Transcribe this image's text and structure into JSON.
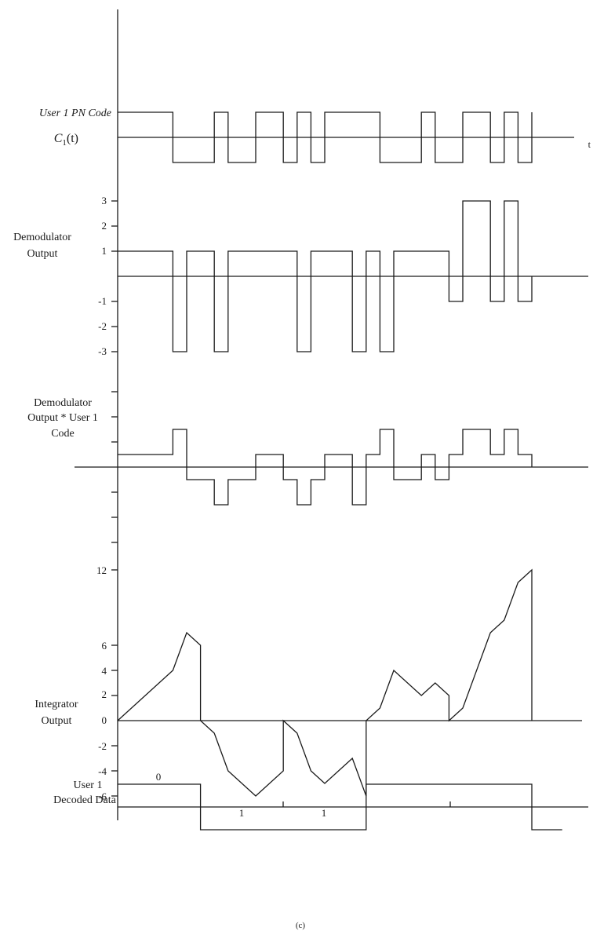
{
  "labels": {
    "pn_code_line1": "User 1 PN Code",
    "pn_code_line2": "C",
    "pn_code_sub": "1",
    "pn_code_arg": "(t)",
    "t_axis": "t",
    "demod_line1": "Demodulator",
    "demod_line2": "Output",
    "product_line1": "Demodulator",
    "product_line2": "Output * User 1",
    "product_line3": "Code",
    "integrator_line1": "Integrator",
    "integrator_line2": "Output",
    "decoded_line1": "User 1",
    "decoded_line2": "Decoded Data",
    "caption": "(c)"
  },
  "demod_ticks": [
    "3",
    "2",
    "1",
    "-1",
    "-2",
    "-3"
  ],
  "integrator_ticks": [
    "12",
    "6",
    "4",
    "2",
    "0",
    "-2",
    "-4",
    "-6"
  ],
  "decoded_bits": [
    "0",
    "1",
    "1"
  ],
  "chart_data": [
    {
      "type": "line",
      "name": "pn_code",
      "x": [
        0,
        2,
        3.5,
        4,
        5,
        6,
        6.5,
        7,
        7.5,
        9.5,
        11,
        11.5,
        12.5,
        13.5,
        14,
        14.5,
        15
      ],
      "y": [
        1,
        -1,
        1,
        -1,
        1,
        -1,
        1,
        -1,
        1,
        -1,
        1,
        -1,
        1,
        -1,
        1,
        -1,
        1
      ]
    },
    {
      "type": "line",
      "name": "demodulator_output",
      "x": [
        0,
        2,
        2.5,
        3.5,
        4,
        6.5,
        7,
        8.5,
        9,
        9.5,
        10,
        12,
        12.5,
        13.5,
        14,
        14.5,
        15
      ],
      "y": [
        1,
        -3,
        1,
        -3,
        1,
        -3,
        1,
        -3,
        1,
        -3,
        1,
        -1,
        3,
        -1,
        3,
        -1,
        0
      ],
      "ylim": [
        -3,
        3
      ]
    },
    {
      "type": "line",
      "name": "product",
      "x": [
        0,
        2,
        2.5,
        3.5,
        4,
        5,
        6,
        6.5,
        7,
        7.5,
        8.5,
        9,
        9.5,
        10,
        11,
        11.5,
        12,
        12.5,
        13.5,
        14,
        14.5,
        15
      ],
      "y": [
        1,
        3,
        -1,
        -3,
        -1,
        1,
        -1,
        -3,
        -1,
        1,
        -3,
        1,
        3,
        -1,
        1,
        -1,
        1,
        3,
        1,
        3,
        1,
        0
      ],
      "ylim": [
        -3,
        3
      ]
    },
    {
      "type": "line",
      "name": "integrator_output",
      "x": [
        0,
        2,
        2.5,
        3,
        3,
        3.5,
        4,
        5,
        6,
        6,
        6.5,
        7,
        7.5,
        8.5,
        9,
        9,
        9.5,
        10,
        11,
        11.5,
        12,
        12,
        12.5,
        13.5,
        14,
        14.5,
        15,
        15
      ],
      "y": [
        0,
        4,
        7,
        6,
        0,
        -1,
        -4,
        -6,
        -4,
        0,
        -1,
        -4,
        -5,
        -3,
        -6,
        0,
        1,
        4,
        2,
        3,
        2,
        0,
        1,
        7,
        8,
        11,
        12,
        0
      ],
      "ylim": [
        -6,
        12
      ]
    },
    {
      "type": "line",
      "name": "decoded_data",
      "x": [
        0,
        3,
        9,
        15
      ],
      "y": [
        1,
        -1,
        1,
        -1
      ]
    }
  ]
}
